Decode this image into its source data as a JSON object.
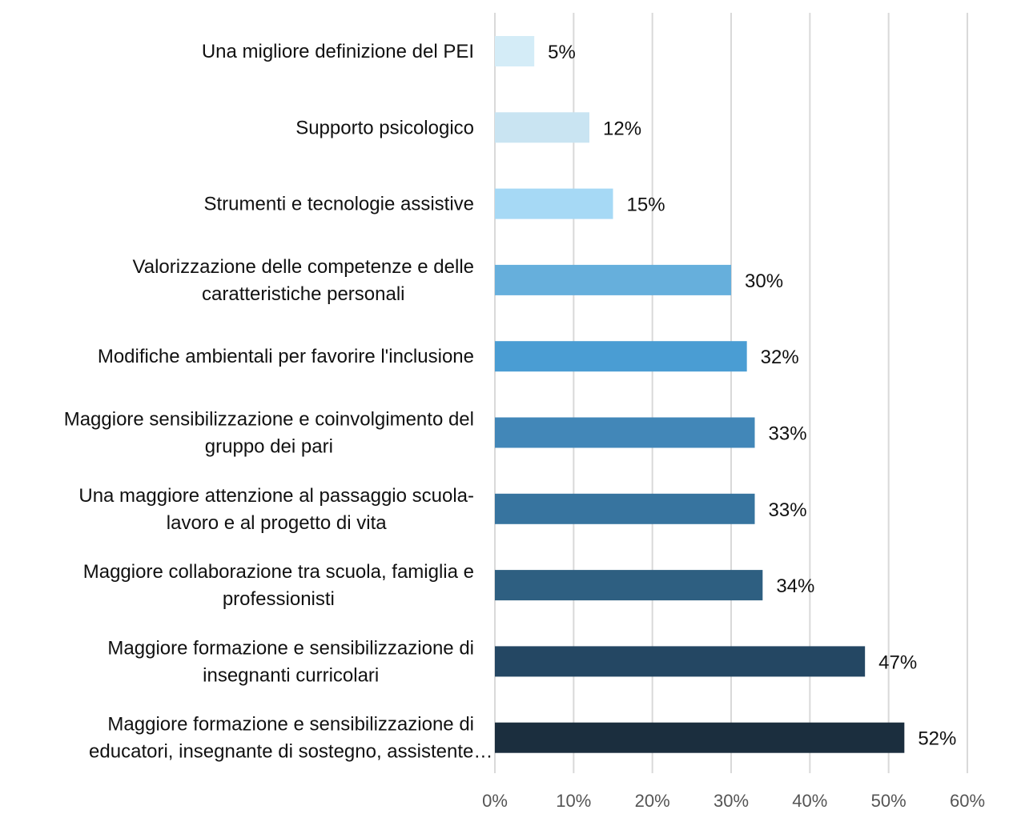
{
  "chart_data": {
    "type": "bar",
    "orientation": "horizontal",
    "title": "",
    "xlabel": "",
    "ylabel": "",
    "xlim": [
      0,
      60
    ],
    "grid": true,
    "legend": "none",
    "ticks": [
      "0%",
      "10%",
      "20%",
      "30%",
      "40%",
      "50%",
      "60%"
    ],
    "categories": [
      [
        "Una migliore definizione del PEI"
      ],
      [
        "Supporto psicologico"
      ],
      [
        "Strumenti e tecnologie assistive"
      ],
      [
        "Valorizzazione delle competenze e delle",
        "caratteristiche personali"
      ],
      [
        "Modifiche ambientali per favorire l'inclusione"
      ],
      [
        "Maggiore sensibilizzazione e coinvolgimento del",
        "gruppo dei pari"
      ],
      [
        "Una maggiore attenzione al passaggio scuola-",
        "lavoro e al progetto di vita"
      ],
      [
        "Maggiore collaborazione tra scuola, famiglia e",
        "professionisti"
      ],
      [
        "Maggiore formazione e sensibilizzazione di",
        "insegnanti curricolari"
      ],
      [
        "Maggiore formazione e sensibilizzazione di",
        "educatori, insegnante di sostegno, assistente…"
      ]
    ],
    "values": [
      5,
      12,
      15,
      30,
      32,
      33,
      33,
      34,
      47,
      52
    ],
    "value_labels": [
      "5%",
      "12%",
      "15%",
      "30%",
      "32%",
      "33%",
      "33%",
      "34%",
      "47%",
      "52%"
    ],
    "colors": [
      "#d4ecf7",
      "#c9e4f2",
      "#a6d9f5",
      "#66afdc",
      "#4a9dd3",
      "#4287b8",
      "#37749f",
      "#2e5f81",
      "#244763",
      "#1b2e3e"
    ]
  }
}
